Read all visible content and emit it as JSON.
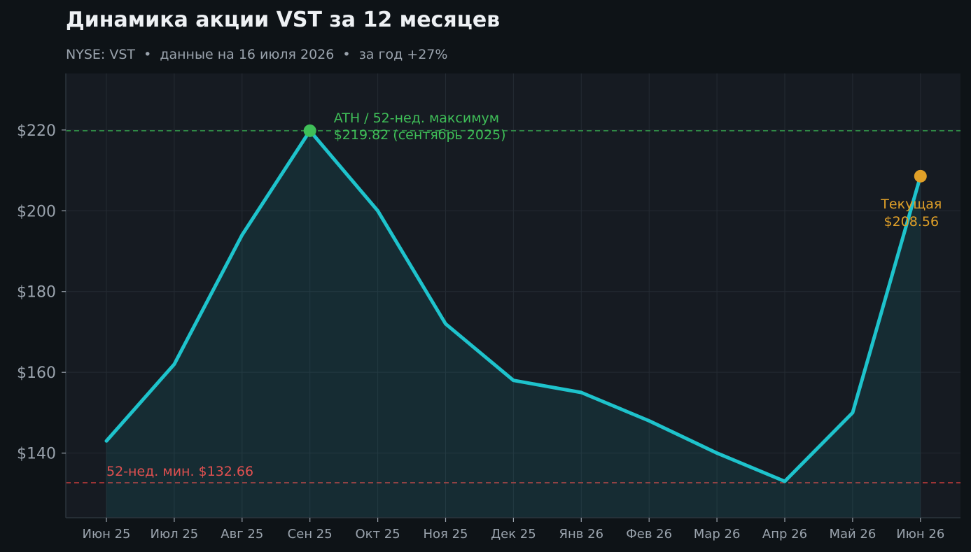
{
  "chart_data": {
    "type": "line",
    "title": "Динамика акции VST за 12 месяцев",
    "subtitle": "NYSE: VST  •  данные на 16 июля 2026  •  за год +27%",
    "categories": [
      "Июн 25",
      "Июл 25",
      "Авг 25",
      "Сен 25",
      "Окт 25",
      "Ноя 25",
      "Дек 25",
      "Янв 26",
      "Фев 26",
      "Мар 26",
      "Апр 26",
      "Май 26",
      "Июн 26"
    ],
    "series": [
      {
        "values": [
          143,
          162,
          194,
          219.82,
          200,
          172,
          158,
          155,
          148,
          140,
          133,
          150,
          208.56
        ]
      }
    ],
    "ylim": [
      124,
      234
    ],
    "yticks": [
      140,
      160,
      180,
      200,
      220
    ],
    "ytick_labels": [
      "$140",
      "$160",
      "$180",
      "$200",
      "$220"
    ],
    "grid": true,
    "reference_lines": [
      {
        "value": 219.82,
        "color": "#2f8a45",
        "label": ""
      },
      {
        "value": 132.66,
        "color": "#b03838",
        "label": "52-нед. мин. $132.66"
      }
    ],
    "annotations": {
      "ath": {
        "index": 3,
        "value": 219.82,
        "line1": "ATH / 52-нед. максимум",
        "line2": "$219.82 (сентябрь 2025)"
      },
      "current": {
        "index": 12,
        "value": 208.56,
        "line1": "Текущая",
        "line2": "$208.56"
      }
    },
    "colors": {
      "line": "#1ec3cc",
      "fill": "#1ec3cc",
      "ath": "#3fbf58",
      "current": "#e0a028",
      "min": "#e05050",
      "plot_bg": "#161b22",
      "page_bg": "#0e1317",
      "grid": "#242b33"
    }
  }
}
